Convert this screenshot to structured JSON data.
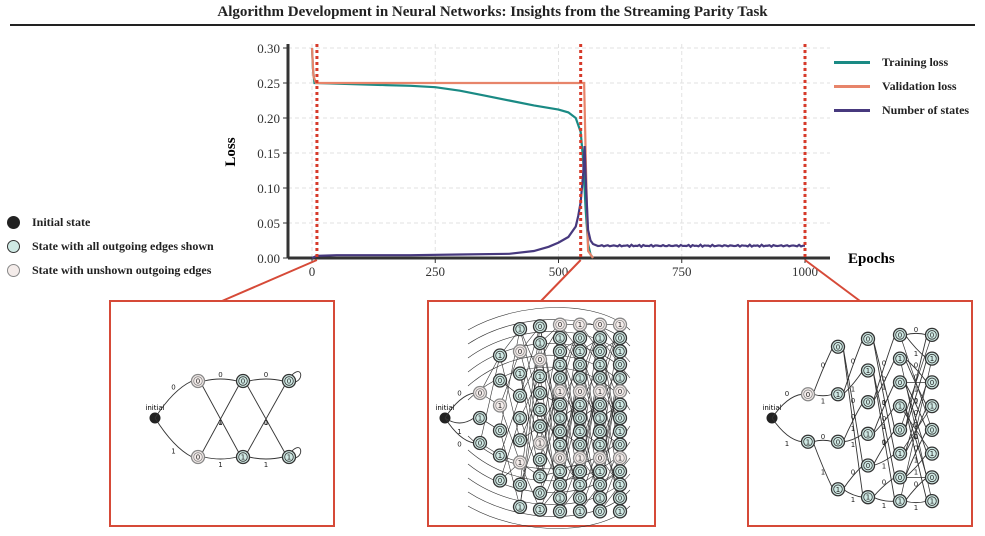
{
  "figure": {
    "title": "Algorithm Development in Neural Networks: Insights from the Streaming Parity Task"
  },
  "chart_data": {
    "type": "line",
    "xlabel": "Epochs",
    "ylabel": "Loss",
    "xlim": [
      0,
      1000
    ],
    "ylim": [
      0,
      0.3
    ],
    "xticks": [
      0,
      250,
      500,
      750,
      1000
    ],
    "yticks": [
      0.0,
      0.05,
      0.1,
      0.15,
      0.2,
      0.25,
      0.3
    ],
    "ytick_labels": [
      "0.00",
      "0.05",
      "0.10",
      "0.15",
      "0.20",
      "0.25",
      "0.30"
    ],
    "xtick_labels": [
      "0",
      "250",
      "500",
      "750",
      "1000"
    ],
    "grid": true,
    "legend_position": "top-right",
    "vlines": [
      10,
      545,
      1000
    ],
    "series": [
      {
        "name": "Training loss",
        "color": "#1a8a84",
        "x": [
          0,
          2,
          5,
          10,
          50,
          100,
          150,
          200,
          250,
          300,
          350,
          400,
          450,
          500,
          520,
          535,
          545,
          550,
          555,
          560,
          565,
          570
        ],
        "y": [
          0.3,
          0.27,
          0.25,
          0.25,
          0.249,
          0.248,
          0.247,
          0.246,
          0.244,
          0.239,
          0.232,
          0.225,
          0.218,
          0.212,
          0.208,
          0.2,
          0.18,
          0.14,
          0.07,
          0.02,
          0.005,
          0.0
        ]
      },
      {
        "name": "Validation loss",
        "color": "#e7846a",
        "x": [
          0,
          3,
          8,
          10,
          100,
          200,
          300,
          400,
          500,
          540,
          552,
          556,
          560,
          570
        ],
        "y": [
          0.3,
          0.26,
          0.25,
          0.25,
          0.25,
          0.25,
          0.25,
          0.25,
          0.25,
          0.25,
          0.25,
          0.12,
          0.01,
          0.0
        ]
      },
      {
        "name": "Number of states",
        "color": "#47397e",
        "x": [
          0,
          10,
          50,
          100,
          200,
          300,
          400,
          450,
          480,
          500,
          520,
          535,
          540,
          545,
          550,
          553,
          556,
          560,
          565,
          570,
          580,
          600,
          700,
          800,
          900,
          1000
        ],
        "y": [
          0.0,
          0.003,
          0.004,
          0.004,
          0.004,
          0.005,
          0.006,
          0.01,
          0.016,
          0.022,
          0.03,
          0.045,
          0.06,
          0.08,
          0.12,
          0.16,
          0.1,
          0.04,
          0.025,
          0.02,
          0.018,
          0.017,
          0.018,
          0.018,
          0.018,
          0.017
        ]
      }
    ]
  },
  "legend_states": [
    {
      "label": "Initial state",
      "fill": "#222222",
      "stroke": "#222222"
    },
    {
      "label": "State with all outgoing edges shown",
      "fill": "#cfe9e4",
      "stroke": "#333333"
    },
    {
      "label": "State with unshown outgoing edges",
      "fill": "#eedfdc",
      "stroke": "#777777"
    }
  ],
  "panels": [
    {
      "initial_label": "initial",
      "edge_labels": [
        "0",
        "1",
        "0",
        "1",
        "0",
        "1"
      ],
      "state_labels": [
        "0",
        "0",
        "0",
        "1",
        "1",
        "1",
        "0"
      ]
    },
    {
      "initial_label": "initial",
      "edge_labels": [
        "0",
        "1",
        "0",
        "1",
        "0",
        "1",
        "0",
        "1",
        "0",
        "1",
        "0",
        "1"
      ],
      "state_labels": [
        "0",
        "1",
        "0",
        "1",
        "0",
        "1",
        "0",
        "1",
        "0",
        "1",
        "0",
        "1",
        "0",
        "1",
        "0",
        "1",
        "0",
        "1",
        "0",
        "1",
        "0",
        "1",
        "0",
        "1",
        "0",
        "1",
        "0",
        "1",
        "0",
        "1",
        "0",
        "1",
        "0",
        "1",
        "0",
        "1",
        "0",
        "1",
        "0",
        "1",
        "0",
        "1",
        "0",
        "1",
        "0",
        "1",
        "0",
        "1",
        "0",
        "1",
        "0",
        "1",
        "0",
        "1",
        "0",
        "1",
        "0",
        "1",
        "0",
        "1",
        "0",
        "1"
      ]
    },
    {
      "initial_label": "initial",
      "edge_labels": [
        "0",
        "1",
        "0",
        "1",
        "0",
        "1",
        "0",
        "1",
        "0",
        "1",
        "0",
        "1"
      ],
      "state_labels": [
        "0",
        "1",
        "0",
        "1",
        "0",
        "1",
        "0",
        "1",
        "0",
        "1",
        "0",
        "1",
        "0",
        "1",
        "0",
        "1",
        "0",
        "1",
        "0",
        "1",
        "0",
        "1",
        "0",
        "1",
        "0",
        "1",
        "0",
        "1"
      ]
    }
  ]
}
